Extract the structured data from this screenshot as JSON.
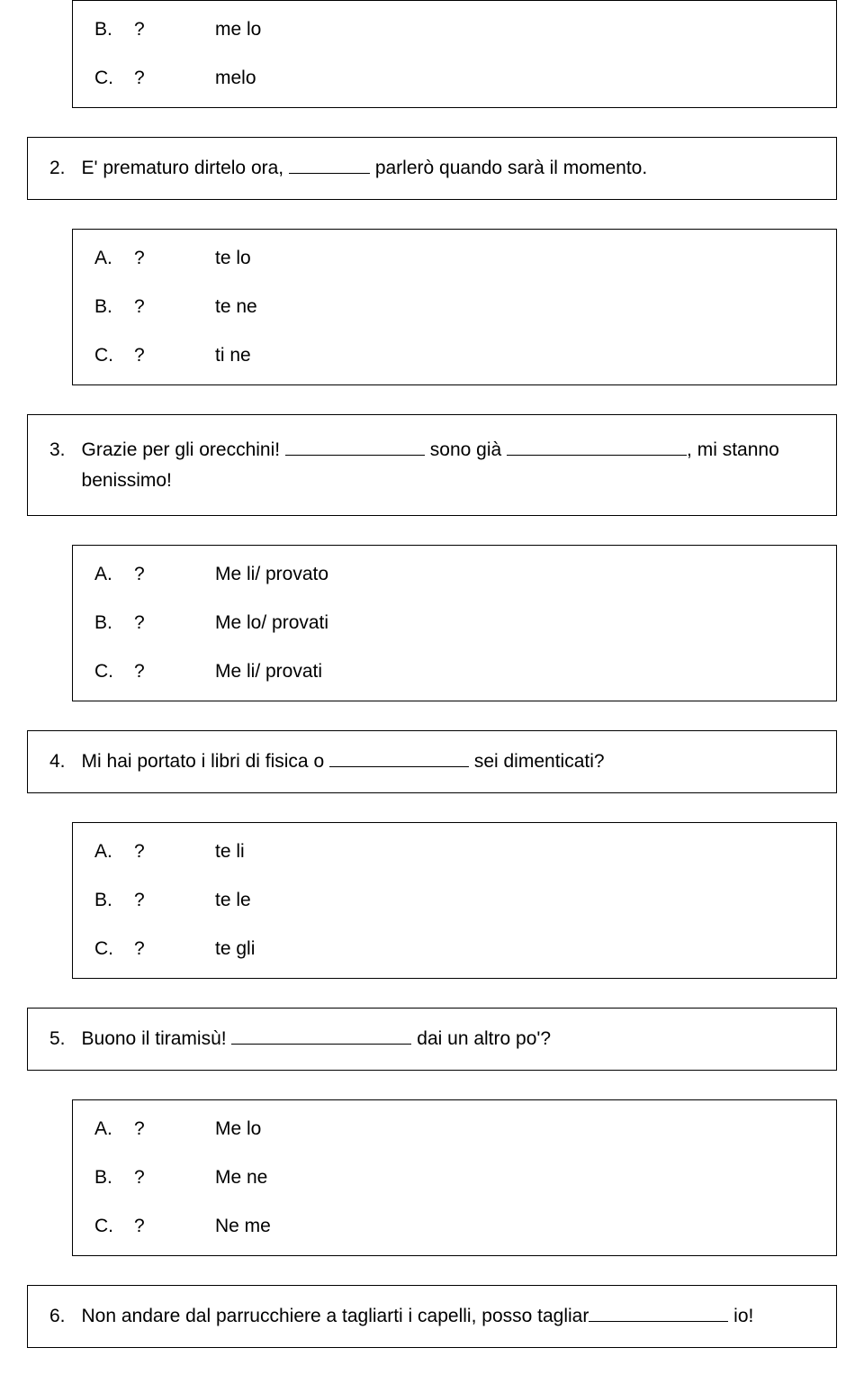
{
  "box1": {
    "options": [
      {
        "letter": "B.",
        "mark": "?",
        "text": "me lo"
      },
      {
        "letter": "C.",
        "mark": "?",
        "text": "melo"
      }
    ]
  },
  "q2": {
    "num": "2.",
    "pre": "E' prematuro dirtelo ora,",
    "post": "parlerò quando sarà il momento.",
    "options": [
      {
        "letter": "A.",
        "mark": "?",
        "text": "te lo"
      },
      {
        "letter": "B.",
        "mark": "?",
        "text": "te ne"
      },
      {
        "letter": "C.",
        "mark": "?",
        "text": "ti ne"
      }
    ]
  },
  "q3": {
    "num": "3.",
    "pre": "Grazie per gli orecchini!",
    "mid": "sono già",
    "post": ", mi stanno",
    "post2": "benissimo!",
    "options": [
      {
        "letter": "A.",
        "mark": "?",
        "text": "Me li/ provato"
      },
      {
        "letter": "B.",
        "mark": "?",
        "text": "Me lo/ provati"
      },
      {
        "letter": "C.",
        "mark": "?",
        "text": "Me li/ provati"
      }
    ]
  },
  "q4": {
    "num": "4.",
    "pre": "Mi hai portato i libri di fisica o",
    "post": "sei dimenticati?",
    "options": [
      {
        "letter": "A.",
        "mark": "?",
        "text": "te li"
      },
      {
        "letter": "B.",
        "mark": "?",
        "text": "te le"
      },
      {
        "letter": "C.",
        "mark": "?",
        "text": "te gli"
      }
    ]
  },
  "q5": {
    "num": "5.",
    "pre": "Buono il tiramisù!",
    "post": "dai un altro po'?",
    "options": [
      {
        "letter": "A.",
        "mark": "?",
        "text": "Me lo"
      },
      {
        "letter": "B.",
        "mark": "?",
        "text": "Me ne"
      },
      {
        "letter": "C.",
        "mark": "?",
        "text": "Ne me"
      }
    ]
  },
  "q6": {
    "num": "6.",
    "pre": "Non andare dal parrucchiere a tagliarti i capelli, posso tagliar",
    "post": "io!"
  }
}
